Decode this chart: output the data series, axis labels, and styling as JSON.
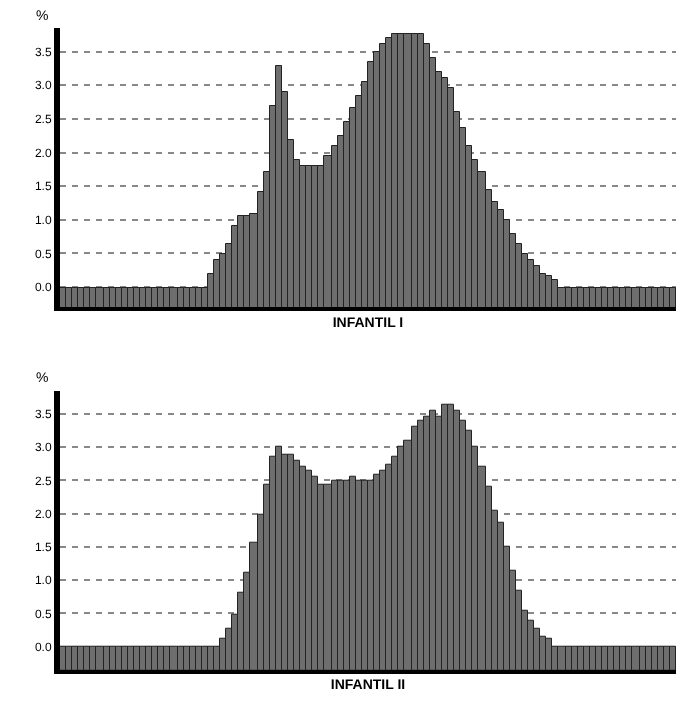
{
  "chart_data": [
    {
      "type": "bar",
      "xlabel": "INFANTIL I",
      "ylabel": "%",
      "tick_labels": "y",
      "grid": "y",
      "color": "#6e6e6e",
      "categories": [
        null,
        null,
        null,
        null,
        null,
        null,
        null,
        null,
        null,
        null,
        null,
        null,
        null,
        null,
        null,
        null,
        null,
        null,
        null,
        null,
        null,
        null,
        null,
        null,
        null,
        null,
        null,
        null,
        null,
        null,
        null,
        null,
        null,
        null,
        null,
        null,
        null,
        null,
        null,
        null,
        null,
        null,
        null,
        null,
        null,
        null,
        null,
        null,
        null,
        null,
        null,
        null,
        null,
        null,
        null,
        null,
        null,
        null,
        null,
        null,
        null,
        null,
        null,
        null,
        null,
        null,
        null,
        null,
        null,
        null,
        null,
        null,
        null,
        null,
        null,
        null,
        null,
        null,
        null,
        null,
        null,
        null,
        null,
        null,
        null,
        null,
        null,
        null,
        null,
        null,
        null,
        null,
        null,
        null,
        null,
        null,
        null,
        null,
        null,
        null
      ],
      "values": [
        0.3,
        0.3,
        0.3,
        0.3,
        0.3,
        0.3,
        0.3,
        0.3,
        0.3,
        0.3,
        0.3,
        0.3,
        0.3,
        0.3,
        0.3,
        0.3,
        0.3,
        0.3,
        0.3,
        0.3,
        0.3,
        0.3,
        0.3,
        0.3,
        0.5,
        0.7,
        0.8,
        0.95,
        1.2,
        1.35,
        1.35,
        1.4,
        1.7,
        2.0,
        3.0,
        3.6,
        3.2,
        2.5,
        2.2,
        2.1,
        2.1,
        2.1,
        2.1,
        2.25,
        2.4,
        2.55,
        2.75,
        2.95,
        3.15,
        3.35,
        3.65,
        3.8,
        3.9,
        4.0,
        4.05,
        4.05,
        4.05,
        4.05,
        4.05,
        3.9,
        3.7,
        3.5,
        3.4,
        3.25,
        2.9,
        2.65,
        2.4,
        2.2,
        2.0,
        1.75,
        1.55,
        1.45,
        1.3,
        1.1,
        0.95,
        0.8,
        0.7,
        0.6,
        0.5,
        0.45,
        0.4,
        0.3,
        0.3,
        0.3,
        0.3,
        0.3,
        0.3,
        0.3,
        0.3,
        0.3,
        0.3,
        0.3,
        0.3,
        0.3,
        0.3,
        0.3,
        0.3,
        0.3,
        0.3,
        0.3
      ],
      "base": [
        -0.3,
        -0.3,
        -0.3,
        -0.3,
        -0.3,
        -0.3,
        -0.3,
        -0.3,
        -0.3,
        -0.3,
        -0.3,
        -0.3,
        -0.3,
        -0.3,
        -0.3,
        -0.3,
        -0.3,
        -0.3,
        -0.3,
        -0.3,
        -0.3,
        -0.3,
        -0.3,
        -0.3,
        -0.3,
        -0.3,
        -0.3,
        -0.3,
        -0.3,
        -0.3,
        -0.3,
        -0.3,
        -0.3,
        -0.3,
        -0.3,
        -0.3,
        -0.3,
        -0.3,
        -0.3,
        -0.3,
        -0.3,
        -0.3,
        -0.3,
        -0.3,
        -0.3,
        -0.3,
        -0.3,
        -0.3,
        -0.3,
        -0.3,
        -0.3,
        -0.3,
        -0.3,
        -0.3,
        -0.3,
        -0.3,
        -0.3,
        -0.3,
        -0.3,
        -0.3,
        -0.3,
        -0.3,
        -0.3,
        -0.3,
        -0.3,
        -0.3,
        -0.3,
        -0.3,
        -0.3,
        -0.3,
        -0.3,
        -0.3,
        -0.3,
        -0.3,
        -0.3,
        -0.3,
        -0.3,
        -0.3,
        -0.3,
        -0.3,
        -0.3,
        -0.3,
        -0.3,
        -0.3,
        -0.3,
        -0.3,
        -0.3,
        -0.3,
        -0.3,
        -0.3,
        -0.3,
        -0.3,
        -0.3,
        -0.3,
        -0.3,
        -0.3,
        -0.3,
        -0.3,
        -0.3,
        -0.3
      ],
      "ylim": [
        -0.3,
        3.85
      ],
      "yticks": [
        {
          "value": 0,
          "label": "0.0"
        },
        {
          "value": 0.5,
          "label": "0.5"
        },
        {
          "value": 1,
          "label": "1.0"
        },
        {
          "value": 1.5,
          "label": "1.5"
        },
        {
          "value": 2,
          "label": "2.0"
        },
        {
          "value": 2.5,
          "label": "2.5"
        },
        {
          "value": 3,
          "label": "3.0"
        },
        {
          "value": 3.5,
          "label": "3.5"
        }
      ]
    },
    {
      "type": "bar",
      "xlabel": "INFANTIL II",
      "ylabel": "%",
      "tick_labels": "y",
      "grid": "y",
      "color": "#6e6e6e",
      "categories": [
        null,
        null,
        null,
        null,
        null,
        null,
        null,
        null,
        null,
        null,
        null,
        null,
        null,
        null,
        null,
        null,
        null,
        null,
        null,
        null,
        null,
        null,
        null,
        null,
        null,
        null,
        null,
        null,
        null,
        null,
        null,
        null,
        null,
        null,
        null,
        null,
        null,
        null,
        null,
        null,
        null,
        null,
        null,
        null,
        null,
        null,
        null,
        null,
        null,
        null,
        null,
        null,
        null,
        null,
        null,
        null,
        null,
        null,
        null,
        null,
        null,
        null,
        null,
        null,
        null,
        null,
        null,
        null,
        null,
        null,
        null,
        null,
        null,
        null,
        null,
        null,
        null,
        null,
        null,
        null,
        null,
        null,
        null,
        null,
        null,
        null,
        null,
        null,
        null,
        null,
        null,
        null,
        null,
        null,
        null,
        null,
        null,
        null,
        null,
        null
      ],
      "values": [
        0.35,
        0.35,
        0.35,
        0.35,
        0.35,
        0.35,
        0.35,
        0.35,
        0.35,
        0.35,
        0.35,
        0.35,
        0.35,
        0.35,
        0.35,
        0.35,
        0.35,
        0.35,
        0.35,
        0.35,
        0.35,
        0.35,
        0.35,
        0.35,
        0.35,
        0.35,
        0.47,
        0.61,
        0.84,
        1.15,
        1.45,
        1.9,
        2.35,
        2.8,
        3.2,
        3.35,
        3.25,
        3.25,
        3.15,
        3.05,
        3.0,
        2.9,
        2.8,
        2.8,
        2.85,
        2.85,
        2.85,
        2.9,
        2.85,
        2.85,
        2.85,
        2.95,
        3.0,
        3.1,
        3.2,
        3.35,
        3.45,
        3.65,
        3.75,
        3.8,
        3.9,
        3.8,
        4.0,
        4.0,
        3.9,
        3.75,
        3.6,
        3.35,
        3.05,
        2.75,
        2.4,
        2.2,
        1.85,
        1.5,
        1.2,
        0.9,
        0.75,
        0.63,
        0.5,
        0.47,
        0.35,
        0.35,
        0.35,
        0.35,
        0.35,
        0.35,
        0.35,
        0.35,
        0.35,
        0.35,
        0.35,
        0.35,
        0.35,
        0.35,
        0.35,
        0.35,
        0.35,
        0.35,
        0.35,
        0.35
      ],
      "base": [
        -0.35,
        -0.35,
        -0.35,
        -0.35,
        -0.35,
        -0.35,
        -0.35,
        -0.35,
        -0.35,
        -0.35,
        -0.35,
        -0.35,
        -0.35,
        -0.35,
        -0.35,
        -0.35,
        -0.35,
        -0.35,
        -0.35,
        -0.35,
        -0.35,
        -0.35,
        -0.35,
        -0.35,
        -0.35,
        -0.35,
        -0.35,
        -0.35,
        -0.35,
        -0.35,
        -0.35,
        -0.35,
        -0.35,
        -0.35,
        -0.35,
        -0.35,
        -0.35,
        -0.35,
        -0.35,
        -0.35,
        -0.35,
        -0.35,
        -0.35,
        -0.35,
        -0.35,
        -0.35,
        -0.35,
        -0.35,
        -0.35,
        -0.35,
        -0.35,
        -0.35,
        -0.35,
        -0.35,
        -0.35,
        -0.35,
        -0.35,
        -0.35,
        -0.35,
        -0.35,
        -0.35,
        -0.35,
        -0.35,
        -0.35,
        -0.35,
        -0.35,
        -0.35,
        -0.35,
        -0.35,
        -0.35,
        -0.35,
        -0.35,
        -0.35,
        -0.35,
        -0.35,
        -0.35,
        -0.35,
        -0.35,
        -0.35,
        -0.35,
        -0.35,
        -0.35,
        -0.35,
        -0.35,
        -0.35,
        -0.35,
        -0.35,
        -0.35,
        -0.35,
        -0.35,
        -0.35,
        -0.35,
        -0.35,
        -0.35,
        -0.35,
        -0.35,
        -0.35,
        -0.35,
        -0.35,
        -0.35
      ],
      "ylim": [
        -0.35,
        3.85
      ],
      "yticks": [
        {
          "value": 0,
          "label": "0.0"
        },
        {
          "value": 0.5,
          "label": "0.5"
        },
        {
          "value": 1,
          "label": "1.0"
        },
        {
          "value": 1.5,
          "label": "1.5"
        },
        {
          "value": 2,
          "label": "2.0"
        },
        {
          "value": 2.5,
          "label": "2.5"
        },
        {
          "value": 3,
          "label": "3.0"
        },
        {
          "value": 3.5,
          "label": "3.5"
        }
      ]
    }
  ]
}
